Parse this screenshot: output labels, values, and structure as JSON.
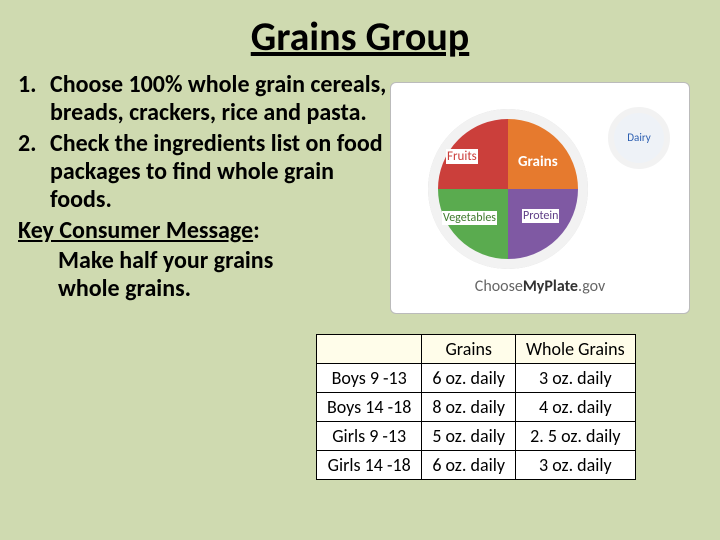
{
  "title": "Grains Group",
  "list": {
    "item1_num": "1.",
    "item1_text": "Choose 100% whole grain cereals, breads, crackers, rice and pasta.",
    "item2_num": "2.",
    "item2_text": "Check the ingredients list on food packages to find whole grain foods."
  },
  "key_message": {
    "label": "Key Consumer Message",
    "colon": ":",
    "body": "Make half your grains whole grains."
  },
  "plate": {
    "fruits": "Fruits",
    "grains": "Grains",
    "vegetables": "Vegetables",
    "protein": "Protein",
    "dairy": "Dairy",
    "brand_choose": "Choose",
    "brand_myplate": "MyPlate",
    "brand_gov": ".gov",
    "colors": {
      "fruits": "#cb3f3b",
      "grains": "#e67a2e",
      "vegetables": "#5aab4f",
      "protein": "#7f59a3",
      "dairy": "#2a5db0",
      "background": "#cfdab0"
    }
  },
  "table": {
    "type": "table",
    "header_bg": "#fffdea",
    "border_color": "#000000",
    "columns": [
      "",
      "Grains",
      "Whole Grains"
    ],
    "rows": [
      [
        "Boys 9 -13",
        "6 oz. daily",
        "3 oz. daily"
      ],
      [
        "Boys 14 -18",
        "8 oz. daily",
        "4 oz. daily"
      ],
      [
        "Girls 9 -13",
        "5 oz. daily",
        "2. 5 oz. daily"
      ],
      [
        "Girls 14 -18",
        "6 oz. daily",
        "3 oz. daily"
      ]
    ]
  }
}
